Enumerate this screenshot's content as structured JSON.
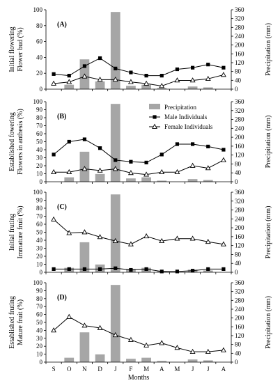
{
  "chart_data": [
    {
      "type": "bar+line",
      "panel_label": "(A)",
      "ylabel_lines": [
        "Initial  flowering",
        "Flower bud (%)"
      ],
      "y2label": "Precipitation (mm)",
      "ylim": [
        0,
        100
      ],
      "y2lim": [
        0,
        360
      ],
      "yticks": [
        0,
        20,
        40,
        60,
        80,
        100
      ],
      "y2ticks": [
        0,
        40,
        80,
        120,
        160,
        200,
        240,
        280,
        320,
        360
      ],
      "categories": [
        "S",
        "O",
        "N",
        "D",
        "J",
        "F",
        "M",
        "A",
        "M",
        "J",
        "J",
        "A"
      ],
      "precipitation": [
        0,
        20,
        135,
        35,
        350,
        15,
        20,
        5,
        0,
        12,
        8,
        0
      ],
      "male": [
        19,
        17,
        29,
        39,
        26,
        21,
        17,
        17,
        25,
        27,
        31,
        27
      ],
      "female": [
        7,
        9,
        16,
        12,
        12,
        9,
        7,
        4,
        11,
        11,
        13,
        18
      ]
    },
    {
      "type": "bar+line",
      "panel_label": "(B)",
      "ylabel_lines": [
        "Established fowering",
        "Flowers in anthesis (%)"
      ],
      "y2label": "Precipitation (mm)",
      "ylim": [
        0,
        100
      ],
      "y2lim": [
        0,
        360
      ],
      "yticks": [
        0,
        10,
        20,
        30,
        40,
        50,
        60,
        70,
        80,
        90,
        100
      ],
      "y2ticks": [
        0,
        40,
        80,
        120,
        160,
        200,
        240,
        280,
        320,
        360
      ],
      "categories": [
        "S",
        "O",
        "N",
        "D",
        "J",
        "F",
        "M",
        "A",
        "M",
        "J",
        "J",
        "A"
      ],
      "precipitation": [
        0,
        20,
        135,
        35,
        350,
        15,
        20,
        5,
        0,
        12,
        8,
        0
      ],
      "male": [
        34,
        50,
        53,
        42,
        27,
        25,
        24,
        34,
        47,
        47,
        44,
        40
      ],
      "female": [
        12,
        12,
        16,
        14,
        16,
        11,
        9,
        12,
        12,
        20,
        17,
        27
      ],
      "legend": {
        "position": "top-right",
        "entries": [
          "Precipitation",
          "Male Individuals",
          "Female Individuals"
        ]
      }
    },
    {
      "type": "bar+line",
      "panel_label": "(C)",
      "ylabel_lines": [
        "Initial fruting",
        "Immature fruit (%)"
      ],
      "y2label": "Precipitation (mm)",
      "ylim": [
        0,
        100
      ],
      "y2lim": [
        0,
        360
      ],
      "yticks": [
        0,
        10,
        20,
        30,
        40,
        50,
        60,
        70,
        80,
        90,
        100
      ],
      "y2ticks": [
        0,
        40,
        80,
        120,
        160,
        200,
        240,
        280,
        320,
        360
      ],
      "categories": [
        "S",
        "O",
        "N",
        "D",
        "J",
        "F",
        "M",
        "A",
        "M",
        "J",
        "J",
        "A"
      ],
      "precipitation": [
        0,
        20,
        135,
        35,
        350,
        15,
        20,
        5,
        0,
        12,
        8,
        0
      ],
      "male": [
        4,
        4,
        4,
        4,
        5,
        3,
        4,
        1,
        1,
        2,
        4,
        4
      ],
      "female": [
        66,
        49,
        50,
        44,
        39,
        35,
        45,
        39,
        42,
        42,
        38,
        35
      ]
    },
    {
      "type": "bar+line",
      "panel_label": "(D)",
      "ylabel_lines": [
        "Established fruting",
        "Mature fruit (%)"
      ],
      "y2label": "Precipitation (mm)",
      "ylim": [
        0,
        100
      ],
      "y2lim": [
        0,
        360
      ],
      "yticks": [
        0,
        10,
        20,
        30,
        40,
        50,
        60,
        70,
        80,
        90,
        100
      ],
      "y2ticks": [
        0,
        40,
        80,
        120,
        160,
        200,
        240,
        280,
        320,
        360
      ],
      "categories": [
        "S",
        "O",
        "N",
        "D",
        "J",
        "F",
        "M",
        "A",
        "M",
        "J",
        "J",
        "A"
      ],
      "precipitation": [
        0,
        20,
        135,
        35,
        350,
        15,
        20,
        5,
        0,
        12,
        8,
        0
      ],
      "female": [
        40,
        57,
        46,
        43,
        34,
        28,
        21,
        24,
        18,
        13,
        13,
        15
      ]
    }
  ],
  "xlabel": "Months",
  "colors": {
    "bar": "#a6a6a6",
    "line": "#000000"
  }
}
